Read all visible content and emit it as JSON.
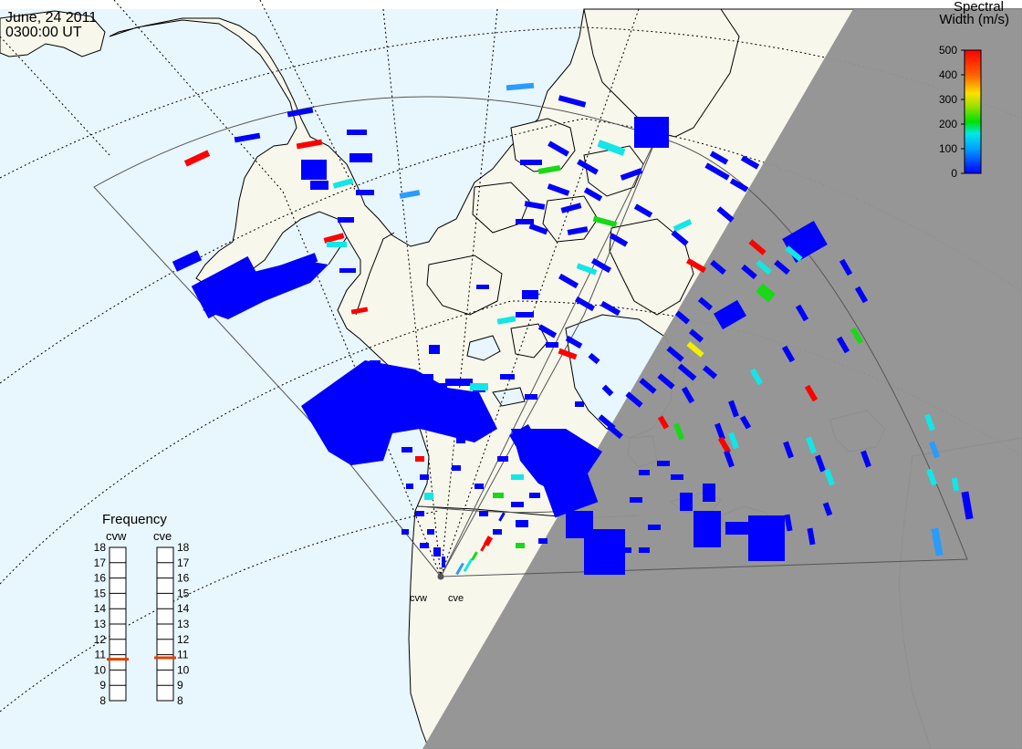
{
  "header": {
    "date": "June, 24 2011",
    "time": "0300:00 UT"
  },
  "colorbar": {
    "title_line1": "Spectral",
    "title_line2": "Width (m/s)",
    "ticks": [
      "500",
      "400",
      "300",
      "200",
      "100",
      "0"
    ]
  },
  "frequency": {
    "title": "Frequency",
    "radars": [
      {
        "name": "cvw",
        "value_mhz": 10.7
      },
      {
        "name": "cve",
        "value_mhz": 10.8
      }
    ],
    "ticks": [
      "18",
      "17",
      "16",
      "15",
      "14",
      "13",
      "12",
      "11",
      "10",
      "9",
      "8"
    ],
    "marker_color": "#e04000"
  },
  "radar_sites": {
    "labels": [
      "cvw",
      "cve"
    ]
  },
  "colors": {
    "ocean": "#e8f6fd",
    "land": "#f8f7ec",
    "night": "#939393",
    "coast": "#000000",
    "fov": "#555555"
  }
}
